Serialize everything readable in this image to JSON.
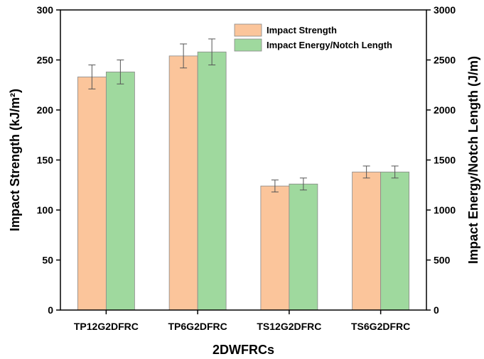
{
  "chart_data": {
    "type": "bar",
    "xlabel": "2DWFRCs",
    "ylabel_left": "Impact Strength (kJ/m²)",
    "ylabel_right": "Impact Energy/Notch Length (J/m)",
    "categories": [
      "TP12G2DFRC",
      "TP6G2DFRC",
      "TS12G2DFRC",
      "TS6G2DFRC"
    ],
    "series": [
      {
        "name": "Impact Strength",
        "axis": "left",
        "color": "#FBC59B",
        "values": [
          233,
          254,
          124,
          138
        ],
        "errors": [
          12,
          12,
          6,
          6
        ]
      },
      {
        "name": "Impact Energy/Notch Length",
        "axis": "right",
        "color": "#9FD99E",
        "values": [
          2380,
          2580,
          1260,
          1380
        ],
        "errors": [
          120,
          130,
          60,
          60
        ]
      }
    ],
    "ylim_left": [
      0,
      300
    ],
    "yticks_left": [
      "0",
      "50",
      "100",
      "150",
      "200",
      "250",
      "300"
    ],
    "ylim_right": [
      0,
      3000
    ],
    "yticks_right": [
      "0",
      "500",
      "1000",
      "1500",
      "2000",
      "2500",
      "3000"
    ],
    "grid": false,
    "legend_position": "top-right"
  }
}
